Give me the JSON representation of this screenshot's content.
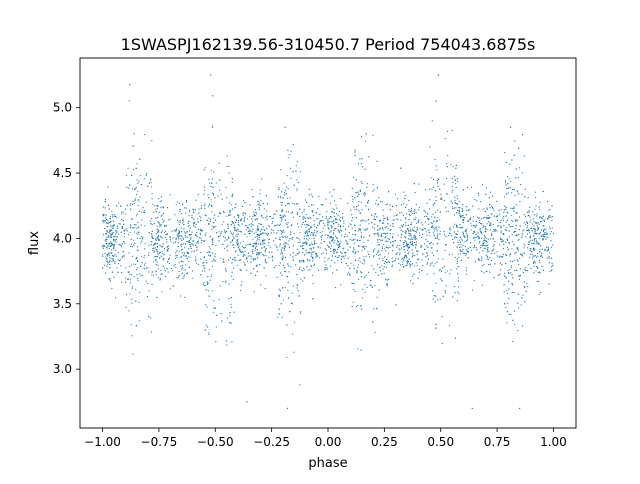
{
  "chart_data": {
    "type": "scatter",
    "title": "1SWASPJ162139.56-310450.7 Period 754043.6875s",
    "xlabel": "phase",
    "ylabel": "flux",
    "xlim": [
      -1.1,
      1.1
    ],
    "ylim": [
      2.55,
      5.38
    ],
    "xticks": [
      -1.0,
      -0.75,
      -0.5,
      -0.25,
      0.0,
      0.25,
      0.5,
      0.75,
      1.0
    ],
    "xtick_labels": [
      "−1.00",
      "−0.75",
      "−0.50",
      "−0.25",
      "0.00",
      "0.25",
      "0.50",
      "0.75",
      "1.00"
    ],
    "yticks": [
      3.0,
      3.5,
      4.0,
      4.5,
      5.0
    ],
    "ytick_labels": [
      "3.0",
      "3.5",
      "4.0",
      "4.5",
      "5.0"
    ],
    "grid": false,
    "marker_color": "#1f77b4",
    "series": [
      {
        "x_range": [
          -1.0,
          1.0
        ],
        "baseline_flux": 4.0,
        "typical_scatter": 0.15,
        "max_flux": 5.25,
        "min_flux": 2.7,
        "sample_points": [
          {
            "x": -0.86,
            "y": 4.8
          },
          {
            "x": -0.52,
            "y": 5.25
          },
          {
            "x": -0.36,
            "y": 2.75
          },
          {
            "x": -0.19,
            "y": 4.85
          },
          {
            "x": -0.18,
            "y": 2.7
          },
          {
            "x": 0.17,
            "y": 4.8
          },
          {
            "x": 0.48,
            "y": 5.05
          },
          {
            "x": 0.49,
            "y": 5.25
          },
          {
            "x": 0.64,
            "y": 2.7
          },
          {
            "x": 0.81,
            "y": 4.85
          },
          {
            "x": 0.85,
            "y": 2.7
          }
        ]
      }
    ]
  }
}
